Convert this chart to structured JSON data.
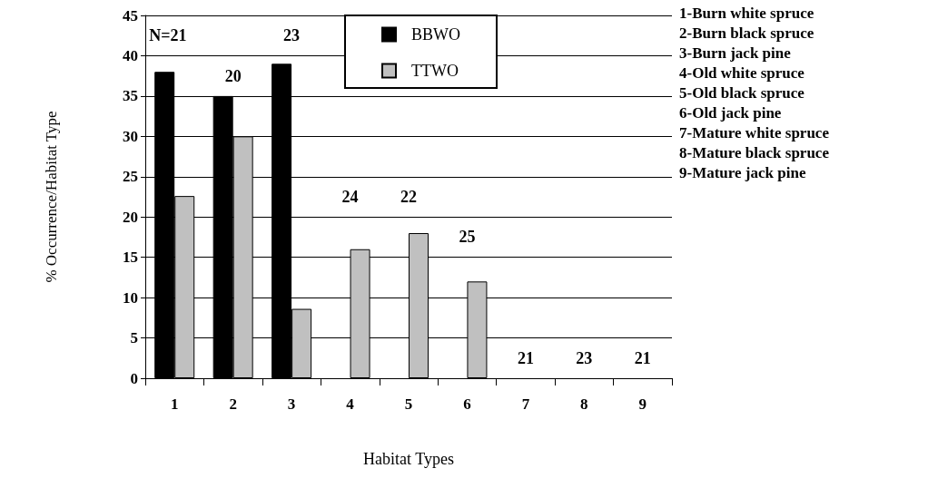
{
  "chart_data": {
    "type": "bar",
    "xlabel": "Habitat Types",
    "ylabel": "% Occurrence/Habitat Type",
    "categories": [
      "1",
      "2",
      "3",
      "4",
      "5",
      "6",
      "7",
      "8",
      "9"
    ],
    "series": [
      {
        "name": "BBWO",
        "color": "#000000",
        "values": [
          38,
          35,
          39,
          0,
          0,
          0,
          0,
          0,
          0
        ]
      },
      {
        "name": "TTWO",
        "color": "#c0c0c0",
        "values": [
          22.6,
          30,
          8.6,
          16,
          18,
          12,
          0,
          0,
          0
        ]
      }
    ],
    "ylim": [
      0,
      45
    ],
    "yticks": [
      0,
      5,
      10,
      15,
      20,
      25,
      30,
      35,
      40,
      45
    ],
    "grid": "y",
    "legend": "top",
    "annotations": [
      "N=21",
      "20",
      "23",
      "24",
      "22",
      "25",
      "21",
      "23",
      "21",
      "1-Burn white spruce",
      "2-Burn black spruce",
      "3-Burn jack pine",
      "4-Old white spruce",
      "5-Old black spruce",
      "6-Old jack pine",
      "7-Mature white spruce",
      "8-Mature black spruce",
      "9-Mature jack pine"
    ]
  }
}
